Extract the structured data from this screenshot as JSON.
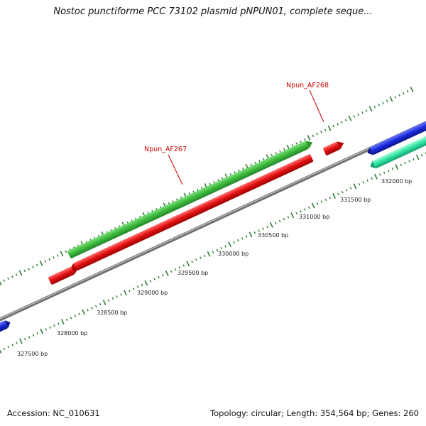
{
  "title": "Nostoc punctiforme PCC 73102 plasmid pNPUN01, complete seque...",
  "footer": {
    "accession": "Accession: NC_010631",
    "topology": "Topology: circular; Length: 354,564 bp; Genes: 260"
  },
  "colors": {
    "backbone": "#8a8a8a",
    "forward_gene": "#3cb83c",
    "reverse_gene": "#e01010",
    "blue_feature": "#1a2ad8",
    "teal_feature": "#2ee0a0",
    "ticks": "#2e7d32",
    "label_red": "#cc0000"
  },
  "gene_labels": [
    {
      "name": "Npun_AF267"
    },
    {
      "name": "Npun_AF268"
    }
  ],
  "scale_labels": [
    "327500 bp",
    "328000 bp",
    "328500 bp",
    "329000 bp",
    "329500 bp",
    "330000 bp",
    "330500 bp",
    "331000 bp",
    "331500 bp",
    "332000 bp"
  ]
}
